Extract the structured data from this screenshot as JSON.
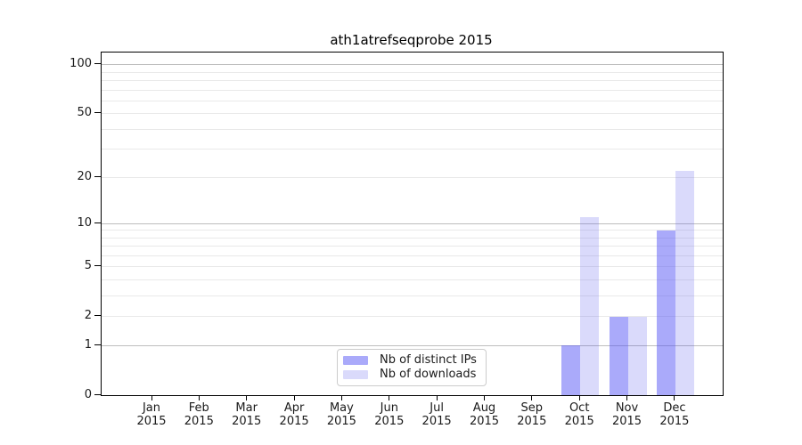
{
  "title": "ath1atrefseqprobe 2015",
  "chart_data": {
    "type": "bar",
    "title": "ath1atrefseqprobe 2015",
    "x_tick_labels": [
      {
        "month": "Jan",
        "year": "2015"
      },
      {
        "month": "Feb",
        "year": "2015"
      },
      {
        "month": "Mar",
        "year": "2015"
      },
      {
        "month": "Apr",
        "year": "2015"
      },
      {
        "month": "May",
        "year": "2015"
      },
      {
        "month": "Jun",
        "year": "2015"
      },
      {
        "month": "Jul",
        "year": "2015"
      },
      {
        "month": "Aug",
        "year": "2015"
      },
      {
        "month": "Sep",
        "year": "2015"
      },
      {
        "month": "Oct",
        "year": "2015"
      },
      {
        "month": "Nov",
        "year": "2015"
      },
      {
        "month": "Dec",
        "year": "2015"
      }
    ],
    "series": [
      {
        "name": "Nb of distinct IPs",
        "values": [
          0,
          0,
          0,
          0,
          0,
          0,
          0,
          0,
          0,
          1,
          2,
          9
        ]
      },
      {
        "name": "Nb of downloads",
        "values": [
          0,
          0,
          0,
          0,
          0,
          0,
          0,
          0,
          0,
          11,
          2,
          22
        ]
      }
    ],
    "y_axis": {
      "scale": "log1p",
      "tick_labels": [
        0,
        1,
        2,
        5,
        10,
        20,
        50,
        100
      ],
      "major_gridlines": [
        1,
        10,
        100
      ],
      "minor_gridlines": [
        2,
        3,
        4,
        5,
        6,
        7,
        8,
        9,
        20,
        30,
        40,
        50,
        60,
        70,
        80,
        90
      ],
      "ylim": [
        0,
        119
      ]
    },
    "legend_position": "lower center",
    "grid": "horizontal only"
  },
  "colors": {
    "distinct_ips_bar": "#aaaaf9",
    "distinct_ips_rgba": "rgba(85,85,245,0.5)",
    "downloads_bar": "#d9d9fb",
    "downloads_rgba": "rgba(85,85,235,0.22)",
    "major_gridline": "#bdbdbd",
    "minor_gridline": "#e9e9e9",
    "axis_spine": "#000000",
    "legend_border": "#cccccc",
    "text": "#1a1a1a"
  }
}
